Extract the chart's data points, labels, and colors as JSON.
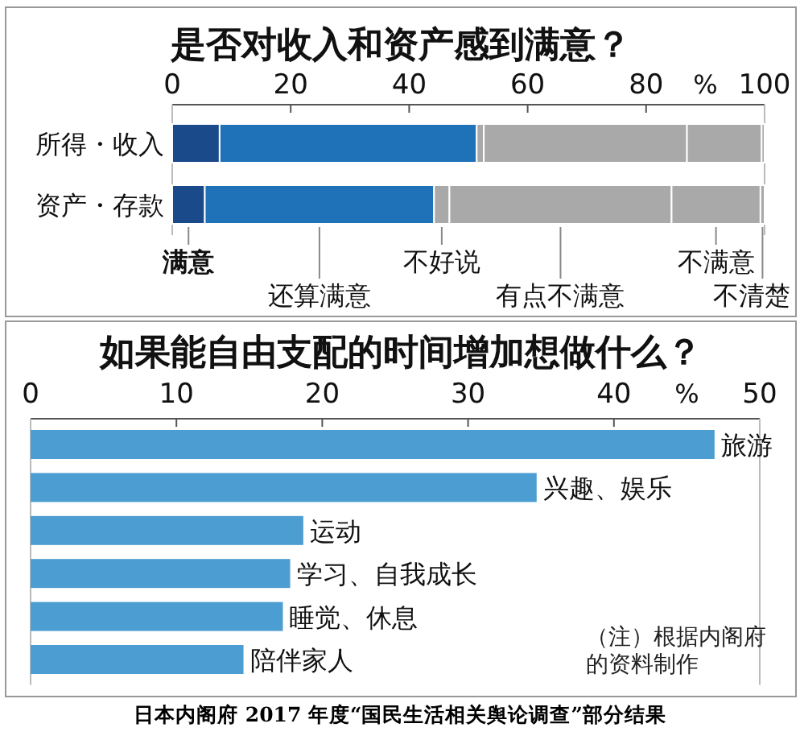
{
  "chart_data": [
    {
      "type": "bar",
      "orientation": "horizontal",
      "stacked": true,
      "title": "是否对收入和资产感到满意？",
      "xlabel": "%",
      "categories": [
        "所得・收入",
        "资产・存款"
      ],
      "xlim": [
        0,
        100
      ],
      "xticks": [
        0,
        20,
        40,
        60,
        80,
        100
      ],
      "series": [
        {
          "name": "满意",
          "color": "#1b4a8a",
          "values": [
            8.0,
            5.5
          ]
        },
        {
          "name": "还算满意",
          "color": "#1f72b8",
          "values": [
            43.4,
            38.7
          ]
        },
        {
          "name": "不好说",
          "color": "#a9a9a9",
          "values": [
            1.2,
            2.6
          ]
        },
        {
          "name": "有点不满意",
          "color": "#a9a9a9",
          "values": [
            34.3,
            37.5
          ]
        },
        {
          "name": "不满意",
          "color": "#a9a9a9",
          "values": [
            12.6,
            15.0
          ]
        },
        {
          "name": "不清楚",
          "color": "#a9a9a9",
          "values": [
            0.5,
            0.7
          ]
        }
      ]
    },
    {
      "type": "bar",
      "orientation": "horizontal",
      "title": "如果能自由支配的时间增加想做什么？",
      "xlabel": "%",
      "categories": [
        "旅游",
        "兴趣、娱乐",
        "运动",
        "学习、自我成长",
        "睡觉、休息",
        "陪伴家人"
      ],
      "values": [
        46.9,
        34.7,
        18.7,
        17.8,
        17.3,
        14.6
      ],
      "color": "#4c9dd2",
      "xlim": [
        0,
        50
      ],
      "xticks": [
        0,
        10,
        20,
        30,
        40,
        50
      ],
      "annotations": [
        "（注）根据内阁府的资料制作",
        "日本内阁府 2017 年度“国民生活相关舆论调查”部分结果"
      ]
    }
  ]
}
